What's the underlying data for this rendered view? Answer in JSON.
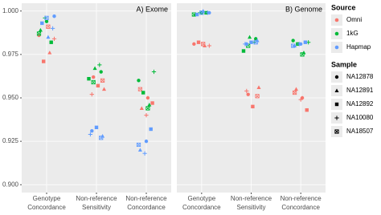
{
  "chart_data": [
    {
      "type": "scatter",
      "title": "A) Exome",
      "categories": [
        "Genotype\nConcordance",
        "Non-reference\nSensitivity",
        "Non-reference\nConcordance"
      ],
      "ylim": [
        0.8955,
        1.0045
      ],
      "yticks": [
        {
          "value": 0.9,
          "label": "0.900"
        },
        0.925,
        {
          "value": 0.95,
          "label": "0.950"
        },
        0.975,
        {
          "value": 1.0,
          "label": "1.000"
        }
      ],
      "grid": true,
      "series": [
        {
          "name": "Omni",
          "color": "#f8766d",
          "values": [
            [
              0.986,
              0.976,
              0.971,
              0.984,
              0.991
            ],
            [
              0.962,
              0.955,
              0.957,
              0.952,
              0.96
            ],
            [
              0.95,
              0.944,
              0.947,
              0.94,
              0.955
            ]
          ]
        },
        {
          "name": "1kG",
          "color": "#00ba38",
          "values": [
            [
              0.994,
              0.989,
              0.982,
              0.996,
              0.987
            ],
            [
              0.965,
              0.967,
              0.961,
              0.969,
              0.959
            ],
            [
              0.96,
              0.946,
              0.953,
              0.965,
              0.944
            ]
          ]
        },
        {
          "name": "Hapmap",
          "color": "#619cff",
          "values": [
            [
              0.997,
              0.985,
              0.993,
              0.99,
              0.996
            ],
            [
              0.931,
              0.928,
              0.933,
              0.929,
              0.927
            ],
            [
              0.925,
              0.92,
              0.932,
              0.918,
              0.923
            ]
          ]
        }
      ]
    },
    {
      "type": "scatter",
      "title": "B) Genome",
      "categories": [
        "Genotype\nConcordance",
        "Non-reference\nSensitivity",
        "Non-reference\nConcordance"
      ],
      "ylim": [
        0.8955,
        1.0045
      ],
      "yticks": [
        {
          "value": 0.9,
          "label": "0.900"
        },
        0.925,
        {
          "value": 0.95,
          "label": "0.950"
        },
        0.975,
        {
          "value": 1.0,
          "label": "1.000"
        }
      ],
      "grid": true,
      "series": [
        {
          "name": "Omni",
          "color": "#f8766d",
          "values": [
            [
              0.981,
              0.98,
              0.982,
              0.98,
              0.981
            ],
            [
              0.952,
              0.956,
              0.945,
              0.954,
              0.951
            ],
            [
              0.95,
              0.955,
              0.943,
              0.949,
              0.953
            ]
          ]
        },
        {
          "name": "1kG",
          "color": "#00ba38",
          "values": [
            [
              0.999,
              0.998,
              0.999,
              0.999,
              0.998
            ],
            [
              0.984,
              0.985,
              0.977,
              0.982,
              0.98
            ],
            [
              0.983,
              0.976,
              0.981,
              0.982,
              0.975
            ]
          ]
        },
        {
          "name": "Hapmap",
          "color": "#619cff",
          "values": [
            [
              0.999,
              1.0,
              0.998,
              0.999,
              0.999
            ],
            [
              0.981,
              0.983,
              0.982,
              0.981,
              0.982
            ],
            [
              0.981,
              0.98,
              0.982,
              0.981,
              0.98
            ]
          ]
        }
      ]
    }
  ],
  "legends": {
    "source": {
      "title": "Source"
    },
    "sample": {
      "title": "Sample",
      "names": [
        "NA12878",
        "NA12891",
        "NA12892",
        "NA10080",
        "NA18507"
      ],
      "shapes": [
        "circle",
        "triangle",
        "square",
        "plus",
        "boxx"
      ]
    }
  }
}
